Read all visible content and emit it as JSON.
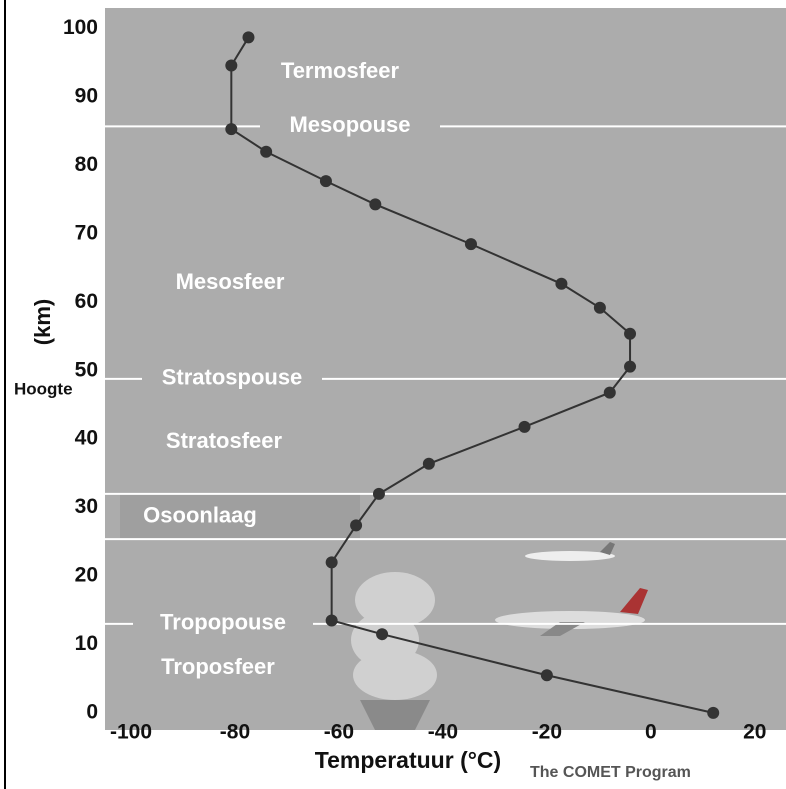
{
  "chart_data": {
    "type": "line",
    "x_label": "Temperatuur (°C)",
    "y_label": "(km)",
    "y_label_2": "Hoogte",
    "credit": "The COMET Program",
    "x": [
      12,
      -20,
      -51.7,
      -61.4,
      -61.4,
      -56.7,
      -52.3,
      -42.7,
      -24.3,
      -7.9,
      -4,
      -4,
      -9.8,
      -17.2,
      -34.6,
      -53,
      -62.5,
      -74,
      -80.7,
      -80.7,
      -77.4
    ],
    "values": [
      0,
      5.5,
      11.5,
      13.5,
      22,
      27.4,
      32,
      36.4,
      41.8,
      46.8,
      50.6,
      55.4,
      59.2,
      62.7,
      68.5,
      74.3,
      77.7,
      82,
      85.3,
      94.6,
      98.7
    ],
    "color": "#333333",
    "xlim": [
      -105,
      26
    ],
    "ylim": [
      -2.5,
      103
    ],
    "xticks": [
      -100,
      -80,
      -60,
      -40,
      -20,
      0,
      20
    ],
    "yticks": [
      0,
      10,
      20,
      30,
      40,
      50,
      60,
      70,
      80,
      90,
      100
    ],
    "boundaries": [
      {
        "label": "Mesopouse",
        "value": 85.7
      },
      {
        "label": "Stratospouse",
        "value": 48.8
      },
      {
        "label": "Tropopouse",
        "value": 13
      }
    ],
    "ozone_layer": {
      "label": "Osoonlaag",
      "range": [
        25.4,
        32
      ]
    },
    "layers": [
      {
        "label": "Termosfeer"
      },
      {
        "label": "Mesosfeer"
      },
      {
        "label": "Stratosfeer"
      },
      {
        "label": "Troposfeer"
      }
    ]
  }
}
